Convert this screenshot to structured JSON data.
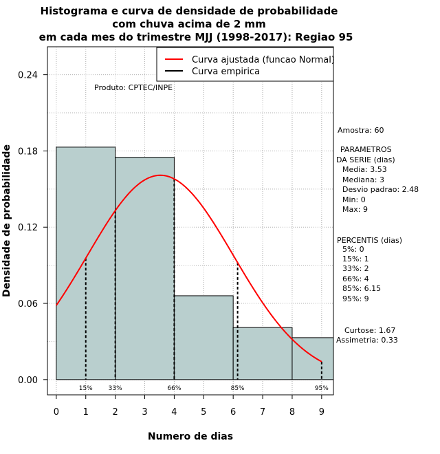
{
  "title_lines": [
    "Histograma e curva de densidade de probabilidade",
    "com chuva acima de 2 mm",
    "em cada mes do trimestre MJJ (1998-2017): Regiao 95"
  ],
  "colors": {
    "bar_fill": "#b9cfce",
    "fit_curve": "#ff0000",
    "axis": "#000000"
  },
  "chart_data": {
    "type": "bar",
    "xlabel": "Numero de dias",
    "ylabel": "Densidade de probabilidade",
    "xlim": [
      -0.3,
      9.4
    ],
    "ylim": [
      -0.012,
      0.262
    ],
    "x_ticks": [
      "0",
      "1",
      "2",
      "3",
      "4",
      "5",
      "6",
      "7",
      "8",
      "9"
    ],
    "y_ticks": [
      "0.00",
      "0.06",
      "0.12",
      "0.18",
      "0.24"
    ],
    "bins": [
      {
        "from": 0,
        "to": 2,
        "density": 0.183
      },
      {
        "from": 2,
        "to": 4,
        "density": 0.175
      },
      {
        "from": 4,
        "to": 6,
        "density": 0.066
      },
      {
        "from": 6,
        "to": 8,
        "density": 0.041
      },
      {
        "from": 8,
        "to": 9.4,
        "density": 0.033
      }
    ],
    "normal_fit": {
      "mean": 3.53,
      "sd": 2.48,
      "x_from": 0,
      "x_to": 9
    },
    "percentile_markers": [
      {
        "x": 1,
        "label": "15%"
      },
      {
        "x": 2,
        "label": "33%"
      },
      {
        "x": 4,
        "label": "66%"
      },
      {
        "x": 6.15,
        "label": "85%"
      },
      {
        "x": 9,
        "label": "95%"
      }
    ],
    "legend": [
      {
        "label": "Curva ajustada (funcao Normal)",
        "color": "#ff0000"
      },
      {
        "label": "Curva empirica",
        "color": "#000000"
      }
    ]
  },
  "product_label": "Produto: CPTEC/INPE",
  "side_panel": {
    "amostra": "Amostra: 60",
    "param_title": "PARAMETROS",
    "param_subtitle": "DA SERIE (dias)",
    "params": [
      "Media: 3.53",
      "Mediana: 3",
      "Desvio padrao: 2.48",
      "Min: 0",
      "Max: 9"
    ],
    "percentis_title": "PERCENTIS (dias)",
    "percentis": [
      "5%: 0",
      "15%: 1",
      "33%: 2",
      "66%: 4",
      "85%: 6.15",
      "95%: 9"
    ],
    "curtose": "Curtose: 1.67",
    "assimetria": "Assimetria: 0.33"
  }
}
